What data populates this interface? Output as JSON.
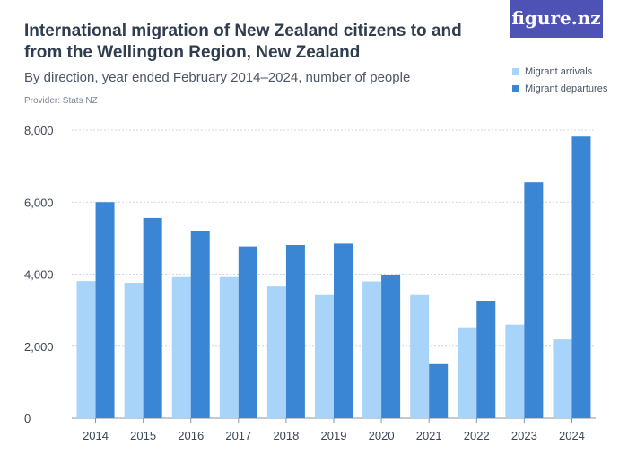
{
  "header": {
    "title": "International migration of New Zealand citizens to and from the Wellington Region, New Zealand",
    "subtitle": "By direction, year ended February 2014–2024, number of people",
    "provider": "Provider: Stats NZ",
    "brand": "figure.nz"
  },
  "colors": {
    "arrivals": "#a9d4f9",
    "departures": "#3a86d4",
    "grid": "#cfd6de",
    "axis": "#8a96a3",
    "brand_bg": "#4f52b5"
  },
  "chart_data": {
    "type": "bar",
    "categories": [
      "2014",
      "2015",
      "2016",
      "2017",
      "2018",
      "2019",
      "2020",
      "2021",
      "2022",
      "2023",
      "2024"
    ],
    "series": [
      {
        "name": "Migrant arrivals",
        "values": [
          3810,
          3750,
          3920,
          3920,
          3660,
          3420,
          3800,
          3420,
          2500,
          2600,
          2190
        ]
      },
      {
        "name": "Migrant departures",
        "values": [
          6000,
          5560,
          5190,
          4770,
          4810,
          4850,
          3970,
          1500,
          3240,
          6550,
          7820
        ]
      }
    ],
    "ylim": [
      0,
      8000
    ],
    "yticks": [
      0,
      2000,
      4000,
      6000,
      8000
    ],
    "ytick_labels": [
      "0",
      "2,000",
      "4,000",
      "6,000",
      "8,000"
    ],
    "grid": true,
    "legend": "top-right"
  }
}
